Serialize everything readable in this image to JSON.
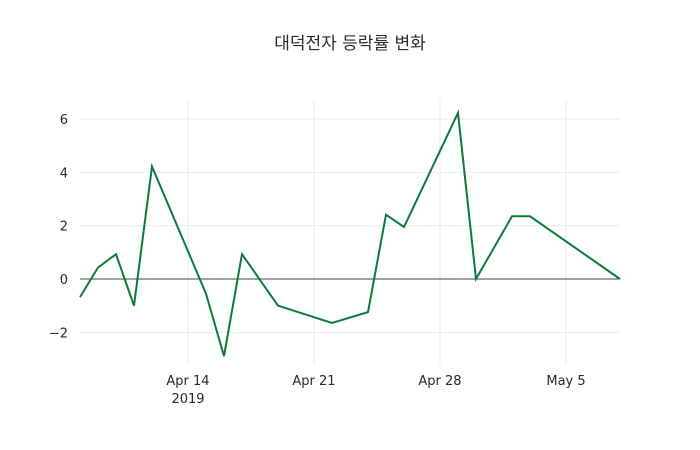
{
  "chart_data": {
    "type": "line",
    "title": "대덕전자 등락률 변화",
    "xlabel": "",
    "ylabel": "",
    "x": [
      "2019-04-08",
      "2019-04-09",
      "2019-04-10",
      "2019-04-11",
      "2019-04-12",
      "2019-04-15",
      "2019-04-16",
      "2019-04-17",
      "2019-04-19",
      "2019-04-22",
      "2019-04-24",
      "2019-04-25",
      "2019-04-26",
      "2019-04-29",
      "2019-04-30",
      "2019-05-02",
      "2019-05-03",
      "2019-05-08"
    ],
    "series": [
      {
        "name": "등락률",
        "color": "#0c7a3e",
        "values": [
          -0.68,
          0.43,
          0.93,
          -1.0,
          4.22,
          -0.55,
          -2.89,
          0.93,
          -1.0,
          -1.65,
          -1.24,
          2.41,
          1.95,
          6.23,
          0.0,
          2.35,
          2.35,
          0.0
        ]
      }
    ],
    "xticks": [
      {
        "label": "Apr 14",
        "sublabel": "2019",
        "date": "2019-04-14"
      },
      {
        "label": "Apr 21",
        "sublabel": "",
        "date": "2019-04-21"
      },
      {
        "label": "Apr 28",
        "sublabel": "",
        "date": "2019-04-28"
      },
      {
        "label": "May 5",
        "sublabel": "",
        "date": "2019-05-05"
      }
    ],
    "yticks": [
      6,
      4,
      2,
      0,
      -2
    ],
    "ytick_labels": [
      "6",
      "4",
      "2",
      "0",
      "−2"
    ],
    "ylim": [
      -3.2,
      6.8
    ],
    "xlim": [
      "2019-04-08",
      "2019-05-08"
    ],
    "grid": true,
    "legend": "none"
  }
}
